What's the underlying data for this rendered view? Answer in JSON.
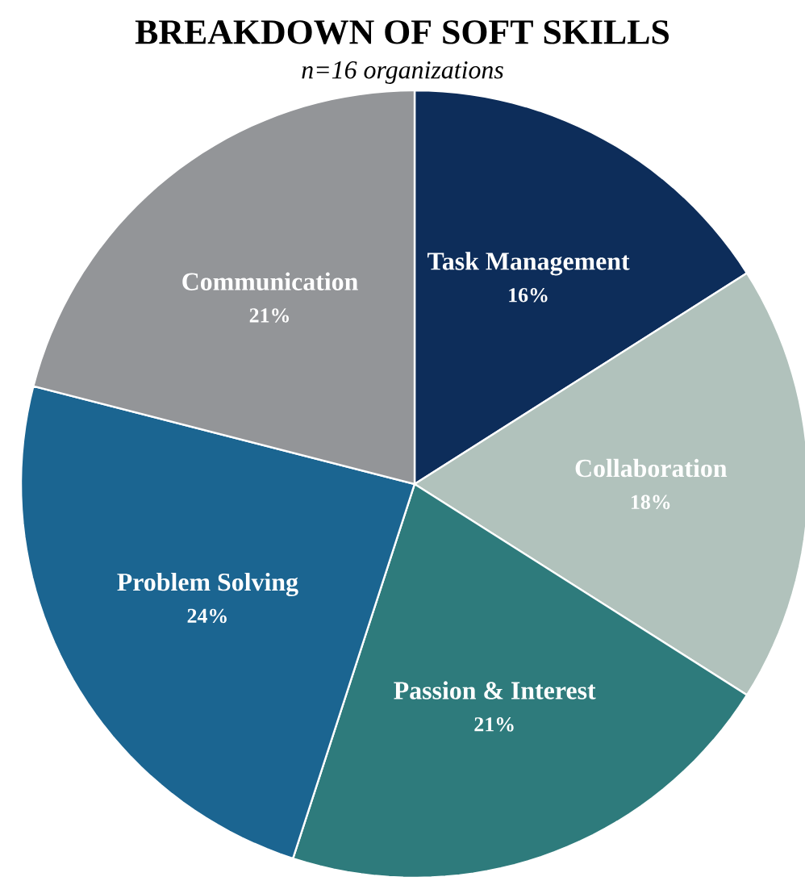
{
  "chart_data": {
    "type": "pie",
    "title": "BREAKDOWN OF SOFT SKILLS",
    "subtitle": "n=16 organizations",
    "categories": [
      "Task Management",
      "Collaboration",
      "Passion & Interest",
      "Problem Solving",
      "Communication"
    ],
    "values": [
      16,
      18,
      21,
      24,
      21
    ],
    "value_labels": [
      "16%",
      "18%",
      "21%",
      "24%",
      "21%"
    ],
    "colors": [
      "#0d2d5a",
      "#b1c2bc",
      "#2e7b7c",
      "#1b6591",
      "#939598"
    ]
  }
}
